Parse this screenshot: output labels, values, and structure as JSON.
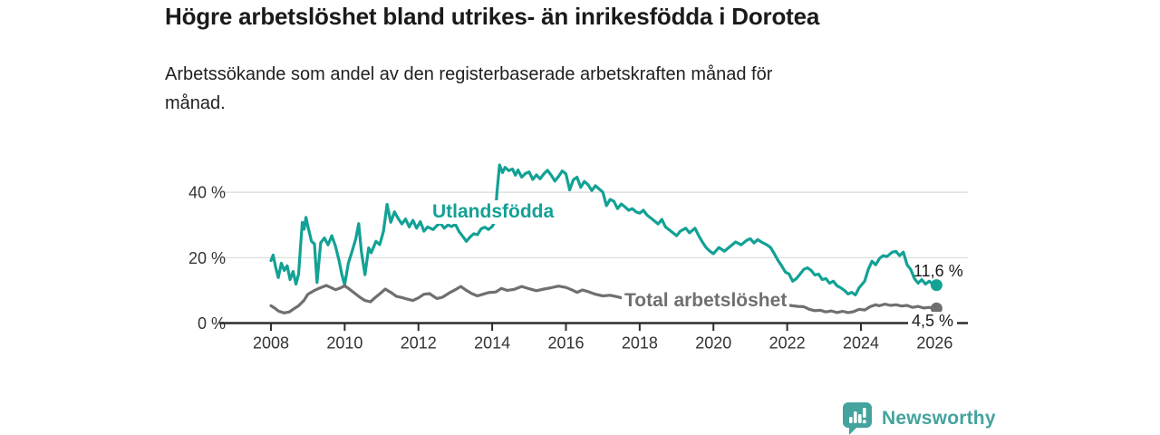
{
  "header": {
    "title": "Högre arbetslöshet bland utrikes- än inrikesfödda i Dorotea",
    "subtitle": "Arbetssökande som andel av den registerbaserade arbetskraften månad för månad."
  },
  "chart_data": {
    "type": "line",
    "title": "Högre arbetslöshet bland utrikes- än inrikesfödda i Dorotea",
    "xlabel": "",
    "ylabel": "",
    "xlim": [
      2006.6,
      2026.9
    ],
    "ylim": [
      0,
      50
    ],
    "x_ticks": [
      2008,
      2010,
      2012,
      2014,
      2016,
      2018,
      2020,
      2022,
      2024,
      2026
    ],
    "y_ticks": [
      0,
      20,
      40
    ],
    "y_tick_suffix": " %",
    "y_gridlines": [
      20,
      40
    ],
    "grid": "horizontal",
    "legend_position": "inline-labels",
    "axis_color": "#2d2d2d",
    "grid_color": "#d9d9d9",
    "tick_label_color": "#333333",
    "series": [
      {
        "name": "Utlandsfödda",
        "inline_label": "Utlandsfödda",
        "color": "#12a195",
        "end_label": "11,6 %",
        "end_value": 11.6,
        "points": [
          [
            2008.0,
            19.1
          ],
          [
            2008.06,
            20.8
          ],
          [
            2008.13,
            16.9
          ],
          [
            2008.2,
            13.9
          ],
          [
            2008.28,
            18.3
          ],
          [
            2008.36,
            16.1
          ],
          [
            2008.44,
            17.5
          ],
          [
            2008.52,
            13.3
          ],
          [
            2008.6,
            15.8
          ],
          [
            2008.68,
            11.9
          ],
          [
            2008.75,
            15.0
          ],
          [
            2008.8,
            23.0
          ],
          [
            2008.85,
            30.8
          ],
          [
            2008.9,
            28.7
          ],
          [
            2008.95,
            32.3
          ],
          [
            2009.0,
            29.6
          ],
          [
            2009.1,
            25.0
          ],
          [
            2009.18,
            24.2
          ],
          [
            2009.25,
            12.4
          ],
          [
            2009.35,
            24.6
          ],
          [
            2009.45,
            26.0
          ],
          [
            2009.55,
            23.9
          ],
          [
            2009.65,
            26.7
          ],
          [
            2009.75,
            23.5
          ],
          [
            2009.85,
            19.0
          ],
          [
            2009.92,
            15.0
          ],
          [
            2010.0,
            11.7
          ],
          [
            2010.1,
            18.3
          ],
          [
            2010.2,
            21.9
          ],
          [
            2010.3,
            25.8
          ],
          [
            2010.38,
            30.4
          ],
          [
            2010.45,
            22.0
          ],
          [
            2010.55,
            14.8
          ],
          [
            2010.65,
            23.0
          ],
          [
            2010.72,
            21.5
          ],
          [
            2010.85,
            25.0
          ],
          [
            2010.95,
            24.0
          ],
          [
            2011.05,
            28.0
          ],
          [
            2011.15,
            36.3
          ],
          [
            2011.25,
            30.8
          ],
          [
            2011.35,
            34.0
          ],
          [
            2011.45,
            32.0
          ],
          [
            2011.55,
            30.3
          ],
          [
            2011.65,
            31.8
          ],
          [
            2011.75,
            29.4
          ],
          [
            2011.85,
            31.4
          ],
          [
            2011.95,
            29.0
          ],
          [
            2012.05,
            31.0
          ],
          [
            2012.15,
            28.1
          ],
          [
            2012.25,
            29.4
          ],
          [
            2012.4,
            28.6
          ],
          [
            2012.5,
            29.8
          ],
          [
            2012.6,
            30.5
          ],
          [
            2012.7,
            29.0
          ],
          [
            2012.8,
            30.0
          ],
          [
            2012.9,
            29.5
          ],
          [
            2013.0,
            30.2
          ],
          [
            2013.1,
            28.0
          ],
          [
            2013.2,
            26.5
          ],
          [
            2013.3,
            25.0
          ],
          [
            2013.4,
            26.3
          ],
          [
            2013.5,
            27.3
          ],
          [
            2013.6,
            27.0
          ],
          [
            2013.7,
            28.8
          ],
          [
            2013.8,
            29.3
          ],
          [
            2013.9,
            28.6
          ],
          [
            2014.0,
            29.5
          ],
          [
            2014.07,
            31.0
          ],
          [
            2014.13,
            40.0
          ],
          [
            2014.2,
            48.3
          ],
          [
            2014.28,
            46.0
          ],
          [
            2014.35,
            47.6
          ],
          [
            2014.45,
            46.6
          ],
          [
            2014.55,
            47.1
          ],
          [
            2014.63,
            45.2
          ],
          [
            2014.7,
            46.8
          ],
          [
            2014.8,
            44.6
          ],
          [
            2014.9,
            45.7
          ],
          [
            2015.0,
            46.2
          ],
          [
            2015.1,
            43.9
          ],
          [
            2015.2,
            45.3
          ],
          [
            2015.3,
            44.1
          ],
          [
            2015.4,
            45.6
          ],
          [
            2015.5,
            46.7
          ],
          [
            2015.6,
            45.2
          ],
          [
            2015.7,
            43.4
          ],
          [
            2015.8,
            44.8
          ],
          [
            2015.9,
            46.5
          ],
          [
            2016.0,
            45.6
          ],
          [
            2016.1,
            40.7
          ],
          [
            2016.2,
            43.8
          ],
          [
            2016.3,
            44.6
          ],
          [
            2016.4,
            41.5
          ],
          [
            2016.5,
            43.3
          ],
          [
            2016.6,
            42.3
          ],
          [
            2016.7,
            40.5
          ],
          [
            2016.8,
            42.0
          ],
          [
            2016.9,
            41.0
          ],
          [
            2017.0,
            40.0
          ],
          [
            2017.1,
            35.9
          ],
          [
            2017.2,
            37.8
          ],
          [
            2017.3,
            37.2
          ],
          [
            2017.4,
            35.0
          ],
          [
            2017.5,
            36.4
          ],
          [
            2017.6,
            35.5
          ],
          [
            2017.7,
            34.5
          ],
          [
            2017.8,
            35.0
          ],
          [
            2017.9,
            34.0
          ],
          [
            2018.0,
            33.6
          ],
          [
            2018.1,
            34.5
          ],
          [
            2018.2,
            33.0
          ],
          [
            2018.35,
            31.7
          ],
          [
            2018.5,
            30.3
          ],
          [
            2018.6,
            31.7
          ],
          [
            2018.7,
            29.4
          ],
          [
            2018.85,
            28.1
          ],
          [
            2019.0,
            26.7
          ],
          [
            2019.1,
            28.1
          ],
          [
            2019.25,
            29.0
          ],
          [
            2019.35,
            27.6
          ],
          [
            2019.5,
            29.0
          ],
          [
            2019.6,
            26.7
          ],
          [
            2019.7,
            24.8
          ],
          [
            2019.8,
            23.1
          ],
          [
            2019.9,
            22.0
          ],
          [
            2020.0,
            21.2
          ],
          [
            2020.15,
            23.1
          ],
          [
            2020.3,
            22.0
          ],
          [
            2020.45,
            23.4
          ],
          [
            2020.6,
            24.8
          ],
          [
            2020.75,
            23.9
          ],
          [
            2020.9,
            25.3
          ],
          [
            2021.0,
            25.8
          ],
          [
            2021.1,
            24.5
          ],
          [
            2021.2,
            25.5
          ],
          [
            2021.3,
            24.8
          ],
          [
            2021.45,
            23.9
          ],
          [
            2021.55,
            23.1
          ],
          [
            2021.65,
            21.2
          ],
          [
            2021.75,
            19.2
          ],
          [
            2021.85,
            17.5
          ],
          [
            2021.95,
            15.6
          ],
          [
            2022.05,
            15.0
          ],
          [
            2022.15,
            12.8
          ],
          [
            2022.25,
            13.6
          ],
          [
            2022.35,
            15.0
          ],
          [
            2022.45,
            16.4
          ],
          [
            2022.55,
            16.9
          ],
          [
            2022.65,
            16.1
          ],
          [
            2022.75,
            14.7
          ],
          [
            2022.85,
            15.0
          ],
          [
            2022.95,
            13.3
          ],
          [
            2023.05,
            13.6
          ],
          [
            2023.15,
            12.2
          ],
          [
            2023.25,
            12.8
          ],
          [
            2023.35,
            11.4
          ],
          [
            2023.45,
            10.8
          ],
          [
            2023.55,
            10.0
          ],
          [
            2023.65,
            8.9
          ],
          [
            2023.75,
            9.4
          ],
          [
            2023.85,
            8.6
          ],
          [
            2023.95,
            10.8
          ],
          [
            2024.1,
            12.8
          ],
          [
            2024.2,
            16.4
          ],
          [
            2024.3,
            18.9
          ],
          [
            2024.4,
            17.8
          ],
          [
            2024.5,
            19.7
          ],
          [
            2024.6,
            20.6
          ],
          [
            2024.7,
            20.3
          ],
          [
            2024.85,
            21.7
          ],
          [
            2024.95,
            21.9
          ],
          [
            2025.05,
            20.6
          ],
          [
            2025.15,
            21.7
          ],
          [
            2025.25,
            17.8
          ],
          [
            2025.35,
            16.4
          ],
          [
            2025.45,
            13.6
          ],
          [
            2025.55,
            12.2
          ],
          [
            2025.65,
            13.3
          ],
          [
            2025.75,
            11.9
          ],
          [
            2025.85,
            12.8
          ],
          [
            2025.95,
            11.9
          ],
          [
            2026.05,
            11.6
          ]
        ]
      },
      {
        "name": "Total arbetslöshet",
        "inline_label": "Total arbetslöshet",
        "color": "#6f6f6f",
        "end_label": "4,5 %",
        "end_value": 4.5,
        "points": [
          [
            2008.0,
            5.3
          ],
          [
            2008.1,
            4.6
          ],
          [
            2008.2,
            3.7
          ],
          [
            2008.35,
            3.1
          ],
          [
            2008.5,
            3.4
          ],
          [
            2008.6,
            4.2
          ],
          [
            2008.75,
            5.3
          ],
          [
            2008.9,
            7.0
          ],
          [
            2009.0,
            8.8
          ],
          [
            2009.15,
            9.8
          ],
          [
            2009.3,
            10.6
          ],
          [
            2009.5,
            11.5
          ],
          [
            2009.6,
            11.0
          ],
          [
            2009.75,
            10.2
          ],
          [
            2009.9,
            10.8
          ],
          [
            2010.0,
            11.4
          ],
          [
            2010.1,
            10.6
          ],
          [
            2010.25,
            9.3
          ],
          [
            2010.4,
            8.0
          ],
          [
            2010.55,
            6.9
          ],
          [
            2010.7,
            6.5
          ],
          [
            2010.85,
            8.0
          ],
          [
            2011.0,
            9.4
          ],
          [
            2011.1,
            10.4
          ],
          [
            2011.25,
            9.4
          ],
          [
            2011.4,
            8.2
          ],
          [
            2011.55,
            7.8
          ],
          [
            2011.7,
            7.3
          ],
          [
            2011.85,
            6.9
          ],
          [
            2012.0,
            7.7
          ],
          [
            2012.15,
            8.8
          ],
          [
            2012.3,
            9.0
          ],
          [
            2012.5,
            7.5
          ],
          [
            2012.65,
            7.9
          ],
          [
            2012.85,
            9.3
          ],
          [
            2013.0,
            10.2
          ],
          [
            2013.15,
            11.2
          ],
          [
            2013.3,
            10.0
          ],
          [
            2013.45,
            9.0
          ],
          [
            2013.6,
            8.3
          ],
          [
            2013.75,
            8.8
          ],
          [
            2013.9,
            9.3
          ],
          [
            2014.1,
            9.5
          ],
          [
            2014.25,
            10.6
          ],
          [
            2014.4,
            10.0
          ],
          [
            2014.6,
            10.3
          ],
          [
            2014.8,
            11.2
          ],
          [
            2015.0,
            10.5
          ],
          [
            2015.2,
            9.9
          ],
          [
            2015.4,
            10.4
          ],
          [
            2015.6,
            10.8
          ],
          [
            2015.8,
            11.3
          ],
          [
            2016.0,
            10.9
          ],
          [
            2016.15,
            10.2
          ],
          [
            2016.3,
            9.4
          ],
          [
            2016.45,
            10.1
          ],
          [
            2016.6,
            9.6
          ],
          [
            2016.8,
            8.8
          ],
          [
            2017.0,
            8.3
          ],
          [
            2017.2,
            8.5
          ],
          [
            2017.4,
            8.0
          ],
          [
            2017.55,
            7.6
          ],
          [
            2017.8,
            7.2
          ],
          [
            2018.0,
            7.4
          ],
          [
            2018.3,
            7.0
          ],
          [
            2018.6,
            7.3
          ],
          [
            2019.0,
            6.8
          ],
          [
            2019.4,
            6.5
          ],
          [
            2019.8,
            6.8
          ],
          [
            2020.0,
            7.2
          ],
          [
            2020.4,
            7.5
          ],
          [
            2020.8,
            7.0
          ],
          [
            2021.0,
            6.8
          ],
          [
            2021.4,
            6.3
          ],
          [
            2021.8,
            5.8
          ],
          [
            2022.0,
            5.5
          ],
          [
            2022.3,
            5.1
          ],
          [
            2022.45,
            5.0
          ],
          [
            2022.6,
            4.2
          ],
          [
            2022.75,
            3.8
          ],
          [
            2022.9,
            3.9
          ],
          [
            2023.05,
            3.4
          ],
          [
            2023.2,
            3.7
          ],
          [
            2023.35,
            3.2
          ],
          [
            2023.5,
            3.6
          ],
          [
            2023.65,
            3.2
          ],
          [
            2023.8,
            3.5
          ],
          [
            2023.95,
            4.2
          ],
          [
            2024.1,
            4.0
          ],
          [
            2024.25,
            5.0
          ],
          [
            2024.4,
            5.6
          ],
          [
            2024.5,
            5.3
          ],
          [
            2024.65,
            5.8
          ],
          [
            2024.8,
            5.4
          ],
          [
            2024.95,
            5.6
          ],
          [
            2025.1,
            5.2
          ],
          [
            2025.25,
            5.4
          ],
          [
            2025.4,
            4.8
          ],
          [
            2025.55,
            5.1
          ],
          [
            2025.7,
            4.6
          ],
          [
            2025.85,
            4.8
          ],
          [
            2026.0,
            4.4
          ],
          [
            2026.05,
            4.5
          ]
        ]
      }
    ]
  },
  "footer": {
    "brand": "Newsworthy",
    "brand_color": "#44a39d",
    "brand_icon": "bar-chart-speech-bubble"
  }
}
